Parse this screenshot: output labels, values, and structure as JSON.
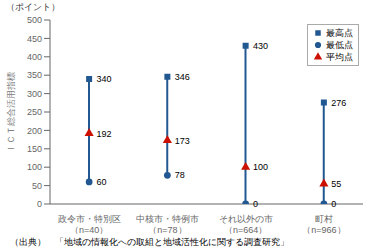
{
  "chart_data": {
    "type": "scatter",
    "categories": [
      "政令市・特別区\n（n=40）",
      "中核市・特例市\n（n=78）",
      "それ以外の市\n（n=664）",
      "町村\n（n=966）"
    ],
    "series": [
      {
        "name": "最高点",
        "color": "#215891",
        "marker": "square",
        "values": [
          340,
          346,
          430,
          276
        ]
      },
      {
        "name": "最低点",
        "color": "#215891",
        "marker": "circle",
        "values": [
          60,
          78,
          0,
          0
        ]
      },
      {
        "name": "平均点",
        "color": "#cc1100",
        "marker": "triangle",
        "values": [
          192,
          173,
          100,
          55
        ]
      }
    ],
    "color": "#215891",
    "ylim": [
      0,
      500
    ],
    "yticks": [
      0,
      50,
      100,
      150,
      200,
      250,
      300,
      350,
      400,
      450,
      500
    ],
    "ylabel": "ＩＣＴ総合活用指標",
    "ylabel_top": "（ポイント）",
    "source": "（出典）　「地域の情報化への取組と地域活性化に関する調査研究」",
    "data_labels": true,
    "legend": "upper right",
    "grid": false
  }
}
